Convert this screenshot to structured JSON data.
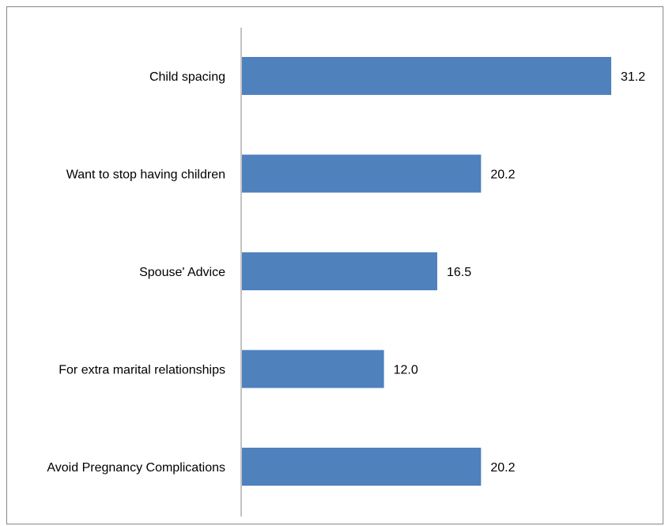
{
  "chart_data": {
    "type": "bar",
    "orientation": "horizontal",
    "categories": [
      "Child spacing",
      "Want to stop having children",
      "Spouse' Advice",
      "For extra marital relationships",
      "Avoid Pregnancy Complications"
    ],
    "values": [
      31.2,
      20.2,
      16.5,
      12.0,
      20.2
    ],
    "value_labels": [
      "31.2",
      "20.2",
      "16.5",
      "12.0",
      "20.2"
    ],
    "title": "",
    "xlabel": "",
    "ylabel": "",
    "xlim": [
      0,
      35
    ],
    "grid": false,
    "legend": "none",
    "bar_color": "#4F81BD",
    "axis_color": "#868686"
  }
}
